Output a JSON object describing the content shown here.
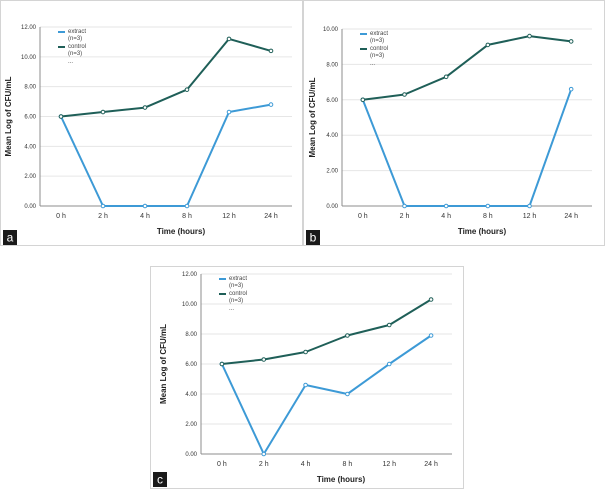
{
  "figure": {
    "panel_labels": [
      "a",
      "b",
      "c"
    ]
  },
  "chart_data": [
    {
      "panel": "a",
      "type": "line",
      "title": "",
      "xlabel": "Time (hours)",
      "ylabel": "Mean Log of CFU/mL",
      "categories": [
        "0 h",
        "2 h",
        "4 h",
        "8 h",
        "12 h",
        "24 h"
      ],
      "yticks": [
        "0.00",
        "2.00",
        "4.00",
        "6.00",
        "8.00",
        "10.00",
        "12.00"
      ],
      "ylim": [
        0,
        12
      ],
      "grid": true,
      "legend_position": "top-left",
      "legend_extra": "...",
      "series": [
        {
          "name": "extract",
          "n_label": "(n=3)",
          "color": "#3d9ad6",
          "values": [
            6.0,
            0.0,
            0.0,
            0.0,
            6.3,
            6.8
          ]
        },
        {
          "name": "control",
          "n_label": "(n=3)",
          "color": "#1f5f58",
          "values": [
            6.0,
            6.3,
            6.6,
            7.8,
            11.2,
            10.4
          ]
        }
      ]
    },
    {
      "panel": "b",
      "type": "line",
      "title": "",
      "xlabel": "Time (hours)",
      "ylabel": "Mean Log of CFU/mL",
      "categories": [
        "0 h",
        "2 h",
        "4 h",
        "8 h",
        "12 h",
        "24 h"
      ],
      "yticks": [
        "0.00",
        "2.00",
        "4.00",
        "6.00",
        "8.00",
        "10.00"
      ],
      "ylim": [
        0,
        10
      ],
      "grid": true,
      "legend_position": "top-left",
      "legend_extra": "...",
      "series": [
        {
          "name": "extract",
          "n_label": "(n=3)",
          "color": "#3d9ad6",
          "values": [
            6.0,
            0.0,
            0.0,
            0.0,
            0.0,
            6.6
          ]
        },
        {
          "name": "control",
          "n_label": "(n=3)",
          "color": "#1f5f58",
          "values": [
            6.0,
            6.3,
            7.3,
            9.1,
            9.6,
            9.3
          ]
        }
      ]
    },
    {
      "panel": "c",
      "type": "line",
      "title": "",
      "xlabel": "Time (hours)",
      "ylabel": "Mean Log of CFU/mL",
      "categories": [
        "0 h",
        "2 h",
        "4 h",
        "8 h",
        "12 h",
        "24 h"
      ],
      "yticks": [
        "0.00",
        "2.00",
        "4.00",
        "6.00",
        "8.00",
        "10.00",
        "12.00"
      ],
      "ylim": [
        0,
        12
      ],
      "grid": true,
      "legend_position": "top-left",
      "legend_extra": "...",
      "series": [
        {
          "name": "extract",
          "n_label": "(n=3)",
          "color": "#3d9ad6",
          "values": [
            6.0,
            0.0,
            4.6,
            4.0,
            6.0,
            7.9
          ]
        },
        {
          "name": "control",
          "n_label": "(n=3)",
          "color": "#1f5f58",
          "values": [
            6.0,
            6.3,
            6.8,
            7.9,
            8.6,
            10.3
          ]
        }
      ]
    }
  ]
}
